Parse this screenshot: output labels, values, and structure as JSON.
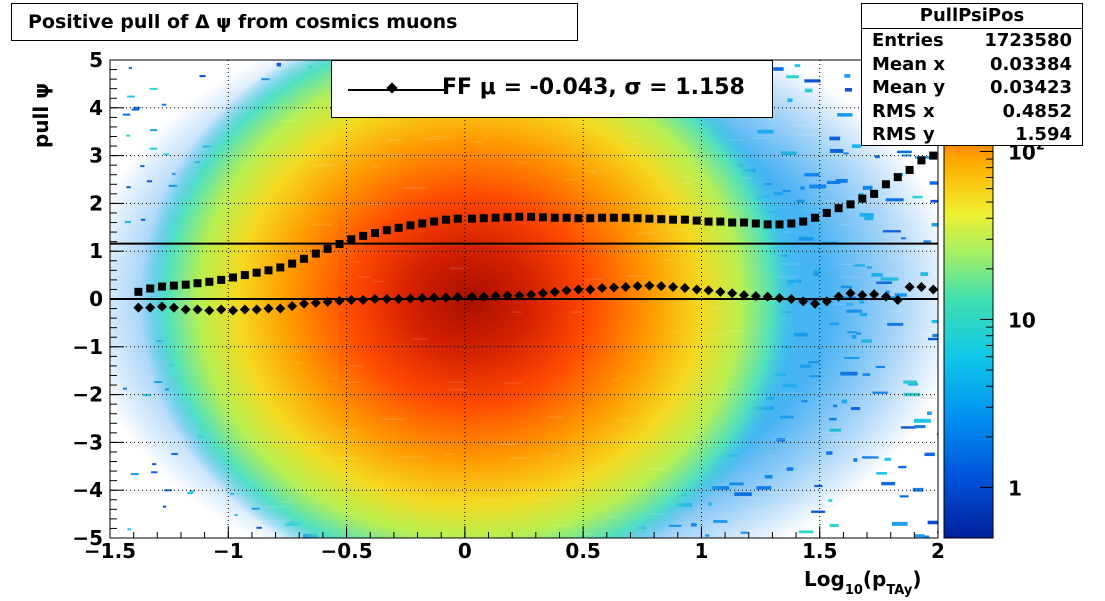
{
  "title": "Positive pull of Δ ψ from cosmics muons",
  "stats": {
    "name": "PullPsiPos",
    "rows": [
      {
        "label": "Entries",
        "value": "1723580"
      },
      {
        "label": "Mean x",
        "value": "0.03384"
      },
      {
        "label": "Mean y",
        "value": "0.03423"
      },
      {
        "label": "RMS x",
        "value": "0.4852"
      },
      {
        "label": "RMS y",
        "value": "1.594"
      }
    ]
  },
  "legend": {
    "text": "FF μ = -0.043, σ =   1.158"
  },
  "chart_data": {
    "type": "heatmap",
    "title": "Positive pull of Δ ψ from cosmics muons",
    "xlabel": "Log₁₀(pₜₐᵧ)",
    "xlabel_main": "Log",
    "xlabel_sub": "10",
    "xlabel_paren": "(p",
    "xlabel_sub2": "TAy",
    "xlabel_close": ")",
    "ylabel": "pull ψ",
    "xlim": [
      -1.5,
      2.0
    ],
    "ylim": [
      -5,
      5
    ],
    "xticks": [
      "−1.5",
      "−1",
      "−0.5",
      "0",
      "0.5",
      "1",
      "1.5",
      "2"
    ],
    "xtick_values": [
      -1.5,
      -1,
      -0.5,
      0,
      0.5,
      1,
      1.5,
      2
    ],
    "yticks": [
      "−5",
      "−4",
      "−3",
      "−2",
      "−1",
      "0",
      "1",
      "2",
      "3",
      "4",
      "5"
    ],
    "ytick_values": [
      -5,
      -4,
      -3,
      -2,
      -1,
      0,
      1,
      2,
      3,
      4,
      5
    ],
    "colorbar": {
      "scale": "log",
      "labels": [
        "1",
        "10",
        "10^2"
      ],
      "label_values": [
        1,
        10,
        100
      ],
      "zlim": [
        0.5,
        350
      ]
    },
    "grid": true,
    "reference_lines": [
      0.0,
      1.158
    ],
    "series": [
      {
        "name": "mean",
        "marker": "diamond",
        "x": [
          -1.38,
          -1.33,
          -1.28,
          -1.23,
          -1.18,
          -1.13,
          -1.08,
          -1.03,
          -0.98,
          -0.93,
          -0.88,
          -0.83,
          -0.78,
          -0.73,
          -0.68,
          -0.63,
          -0.58,
          -0.53,
          -0.48,
          -0.43,
          -0.38,
          -0.33,
          -0.28,
          -0.23,
          -0.18,
          -0.13,
          -0.08,
          -0.03,
          0.03,
          0.08,
          0.13,
          0.18,
          0.23,
          0.28,
          0.33,
          0.38,
          0.43,
          0.48,
          0.53,
          0.58,
          0.63,
          0.68,
          0.73,
          0.78,
          0.83,
          0.88,
          0.93,
          0.98,
          1.03,
          1.08,
          1.13,
          1.18,
          1.23,
          1.28,
          1.33,
          1.38,
          1.43,
          1.48,
          1.53,
          1.58,
          1.63,
          1.68,
          1.73,
          1.78,
          1.83,
          1.88,
          1.93,
          1.98
        ],
        "y": [
          -0.18,
          -0.18,
          -0.16,
          -0.18,
          -0.22,
          -0.22,
          -0.24,
          -0.22,
          -0.24,
          -0.22,
          -0.22,
          -0.2,
          -0.2,
          -0.15,
          -0.1,
          -0.08,
          -0.06,
          -0.04,
          -0.02,
          -0.02,
          0.0,
          0.0,
          0.0,
          0.01,
          0.02,
          0.03,
          0.03,
          0.04,
          0.05,
          0.05,
          0.06,
          0.07,
          0.07,
          0.09,
          0.12,
          0.15,
          0.18,
          0.2,
          0.2,
          0.23,
          0.24,
          0.25,
          0.27,
          0.28,
          0.27,
          0.25,
          0.23,
          0.2,
          0.18,
          0.15,
          0.12,
          0.08,
          0.06,
          0.05,
          0.02,
          0.0,
          -0.05,
          -0.1,
          -0.05,
          0.05,
          0.12,
          0.08,
          0.1,
          0.05,
          -0.02,
          0.25,
          0.25,
          0.2
        ]
      },
      {
        "name": "rms",
        "marker": "square",
        "x": [
          -1.38,
          -1.33,
          -1.28,
          -1.23,
          -1.18,
          -1.13,
          -1.08,
          -1.03,
          -0.98,
          -0.93,
          -0.88,
          -0.83,
          -0.78,
          -0.73,
          -0.68,
          -0.63,
          -0.58,
          -0.53,
          -0.48,
          -0.43,
          -0.38,
          -0.33,
          -0.28,
          -0.23,
          -0.18,
          -0.13,
          -0.08,
          -0.03,
          0.03,
          0.08,
          0.13,
          0.18,
          0.23,
          0.28,
          0.33,
          0.38,
          0.43,
          0.48,
          0.53,
          0.58,
          0.63,
          0.68,
          0.73,
          0.78,
          0.83,
          0.88,
          0.93,
          0.98,
          1.03,
          1.08,
          1.13,
          1.18,
          1.23,
          1.28,
          1.33,
          1.38,
          1.43,
          1.48,
          1.53,
          1.58,
          1.63,
          1.68,
          1.73,
          1.78,
          1.83,
          1.88,
          1.93,
          1.98
        ],
        "y": [
          0.15,
          0.22,
          0.26,
          0.28,
          0.3,
          0.33,
          0.36,
          0.4,
          0.45,
          0.5,
          0.55,
          0.6,
          0.66,
          0.74,
          0.84,
          0.95,
          1.05,
          1.15,
          1.25,
          1.32,
          1.38,
          1.44,
          1.49,
          1.54,
          1.58,
          1.62,
          1.66,
          1.68,
          1.68,
          1.69,
          1.7,
          1.71,
          1.72,
          1.72,
          1.71,
          1.7,
          1.7,
          1.69,
          1.69,
          1.7,
          1.7,
          1.7,
          1.69,
          1.68,
          1.67,
          1.66,
          1.66,
          1.64,
          1.62,
          1.62,
          1.6,
          1.6,
          1.58,
          1.56,
          1.56,
          1.58,
          1.62,
          1.7,
          1.8,
          1.9,
          1.98,
          2.1,
          2.2,
          2.4,
          2.55,
          2.7,
          2.9,
          3.0
        ]
      }
    ]
  }
}
